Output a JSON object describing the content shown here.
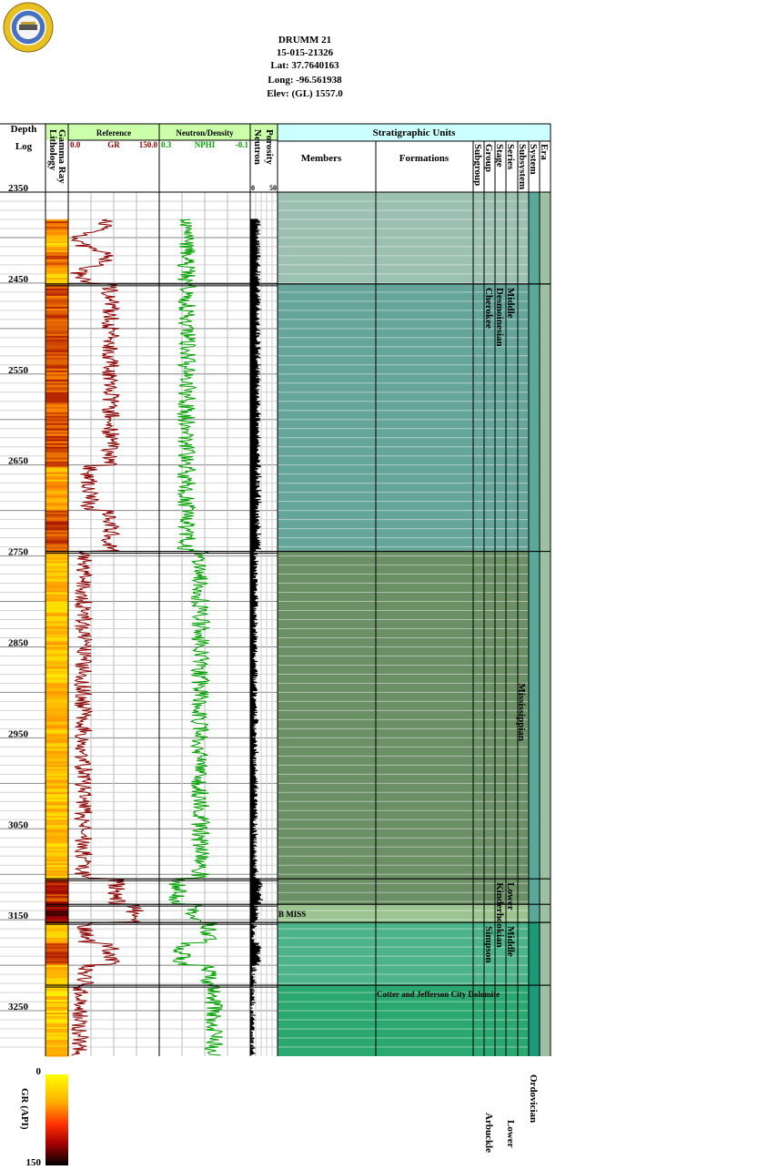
{
  "well_header": {
    "name": "DRUMM 21",
    "api": "15-015-21326",
    "lat": "Lat: 37.7640163",
    "long": "Long: -96.561938",
    "elev": "Elev: (GL) 1557.0",
    "seal_text": "KANSAS GEOLOGICAL SURVEY"
  },
  "columns": {
    "depth_title": "Depth",
    "depth_sub": "Log",
    "lithology": "Lithology",
    "gamma": "Gamma Ray",
    "reference": "Reference",
    "gr_min": "0.0",
    "gr_label": "GR",
    "gr_max": "150.0",
    "neutron_density": "Neutron/Density",
    "nphi_min": "0.3",
    "nphi_label": "NPHI",
    "nphi_max": "-0.1",
    "porosity": "Porosity",
    "neutron": "Neutron",
    "por_min": "0",
    "por_max": "50",
    "strat_units": "Stratigraphic Units",
    "members": "Members",
    "formations": "Formations",
    "subgroup": "Subgroup",
    "group": "Group",
    "stage": "Stage",
    "series": "Series",
    "subsystem": "Subsystem",
    "system": "System",
    "era": "Era"
  },
  "colors": {
    "gr_curve": "#8b0000",
    "nphi_curve": "#00a000",
    "header_green": "#ccffaa",
    "header_cyan": "#ccffff",
    "unit_cherokee": "#66a69a",
    "unit_upper": "#9cc0b2",
    "unit_miss": "#6b9066",
    "unit_bmiss": "#9bc490",
    "unit_simpson": "#4db48a",
    "unit_arbuckle": "#2aa870",
    "era_col": "#9cc0a0",
    "system_col": "#5aa89a"
  },
  "chart_data": {
    "type": "well_log",
    "depth_range": [
      2350,
      3300
    ],
    "depth_ticks": [
      2350,
      2450,
      2550,
      2650,
      2750,
      2850,
      2950,
      3050,
      3150,
      3250
    ],
    "gr_range": [
      0,
      150
    ],
    "nphi_range": [
      0.3,
      -0.1
    ],
    "porosity_range": [
      0,
      50
    ],
    "tops": [
      2451,
      2745,
      3105,
      3133,
      3153,
      3222
    ],
    "stratigraphy": {
      "formation_labels": [
        {
          "text": "B MISS",
          "depth": 3137
        },
        {
          "text": "Cotter and Jefferson City Dolomite",
          "depth": 3225
        }
      ],
      "group_labels": [
        {
          "text": "Cherokee",
          "depth": 2452
        },
        {
          "text": "Simpson",
          "depth": 3154
        },
        {
          "text": "Arbuckle",
          "depth": 3360
        }
      ],
      "stage_labels": [
        {
          "text": "Desmoinesian",
          "depth": 2452
        },
        {
          "text": "Kinderhookian",
          "depth": 3106
        },
        {
          "text": "Middle",
          "depth": 3154
        }
      ],
      "series_labels": [
        {
          "text": "Middle",
          "depth": 2452
        },
        {
          "text": "Lower",
          "depth": 3106
        },
        {
          "text": "Lower",
          "depth": 3360
        }
      ],
      "subsystem_labels": [
        {
          "text": "Mississippian",
          "depth": 2890
        }
      ],
      "system_labels": [
        {
          "text": "Ordovician",
          "depth": 3372
        }
      ]
    },
    "gr_scale_bar": {
      "title": "GR (API)",
      "min": "0",
      "max": "150"
    }
  }
}
